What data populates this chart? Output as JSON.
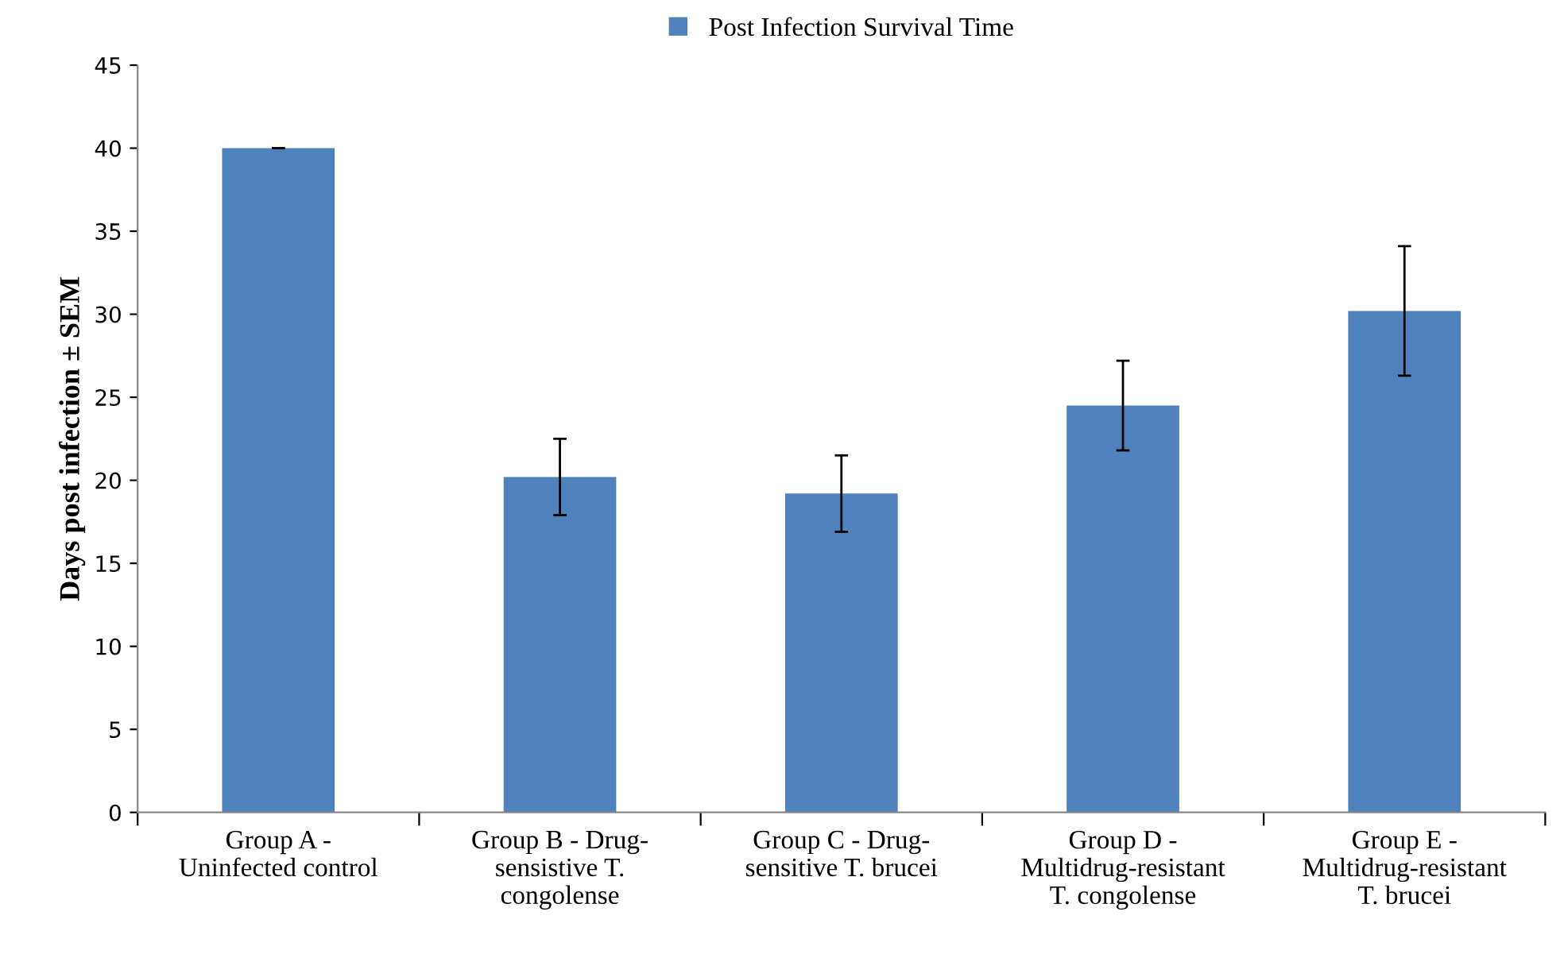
{
  "chart_data": {
    "type": "bar",
    "ylabel": "Days post infection ± SEM",
    "categories": [
      "Group A -\nUninfected control",
      "Group B - Drug-\nsensistive T.\ncongolense",
      "Group C - Drug-\nsensitive T. brucei",
      "Group D -\nMultidrug-resistant\nT. congolense",
      "Group E -\nMultidrug-resistant\nT. brucei"
    ],
    "series": [
      {
        "name": "Post Infection Survival Time",
        "color": "#4f81bd",
        "values": [
          40,
          20.2,
          19.2,
          24.5,
          30.2
        ],
        "errors": [
          0,
          2.3,
          2.3,
          2.7,
          3.9
        ]
      }
    ],
    "ylim": [
      0,
      45
    ],
    "yticks": [
      0,
      5,
      10,
      15,
      20,
      25,
      30,
      35,
      40,
      45
    ],
    "grid": false,
    "legend": "top"
  }
}
